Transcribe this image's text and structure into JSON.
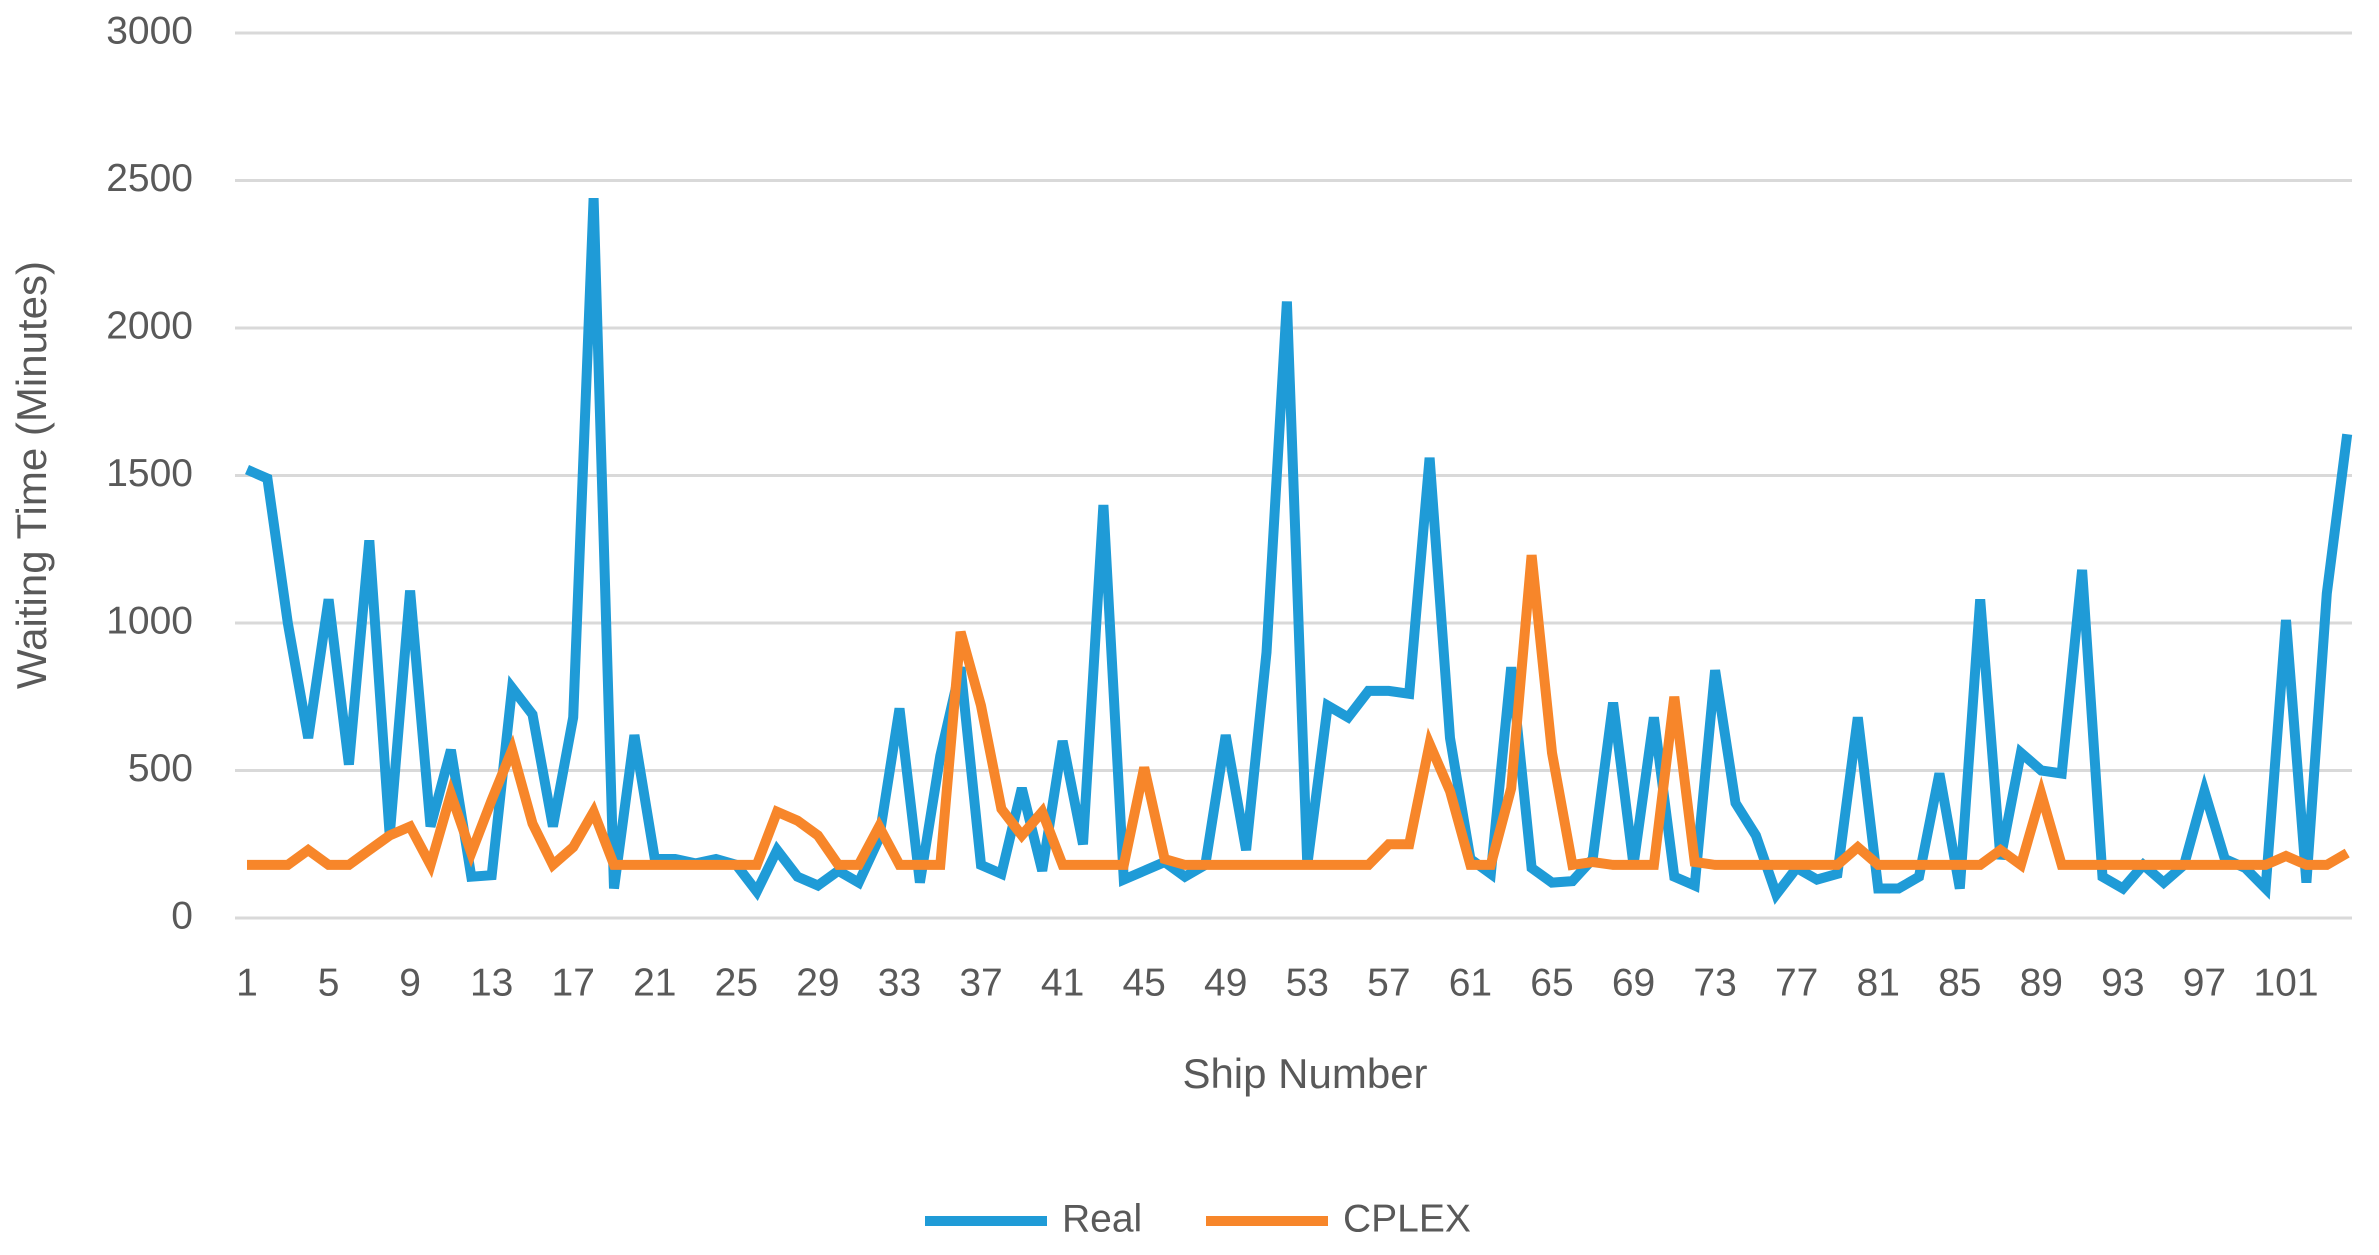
{
  "chart_data": {
    "type": "line",
    "x_label": "Ship Number",
    "y_label": "Waiting Time (Minutes)",
    "categories": [
      "1",
      null,
      null,
      null,
      "5",
      null,
      null,
      null,
      "9",
      null,
      null,
      null,
      "13",
      null,
      null,
      null,
      "17",
      null,
      null,
      null,
      "21",
      null,
      null,
      null,
      "25",
      null,
      null,
      null,
      "29",
      null,
      null,
      null,
      "33",
      null,
      null,
      null,
      "37",
      null,
      null,
      null,
      "41",
      null,
      null,
      null,
      "45",
      null,
      null,
      null,
      "49",
      null,
      null,
      null,
      "53",
      null,
      null,
      null,
      "57",
      null,
      null,
      null,
      "61",
      null,
      null,
      null,
      "65",
      null,
      null,
      null,
      "69",
      null,
      null,
      null,
      "73",
      null,
      null,
      null,
      "77",
      null,
      null,
      null,
      "81",
      null,
      null,
      null,
      "85",
      null,
      null,
      null,
      "89",
      null,
      null,
      null,
      "93",
      null,
      null,
      null,
      "97",
      null,
      null,
      null,
      "101",
      null,
      null,
      null
    ],
    "series": [
      {
        "name": "Real",
        "color": "#1f9bd7",
        "values": [
          1520,
          1490,
          1000,
          610,
          1080,
          520,
          1280,
          280,
          1110,
          310,
          570,
          140,
          145,
          780,
          690,
          310,
          680,
          2440,
          100,
          620,
          200,
          200,
          185,
          200,
          180,
          90,
          230,
          140,
          110,
          160,
          120,
          270,
          710,
          120,
          550,
          850,
          180,
          150,
          440,
          160,
          600,
          250,
          1400,
          130,
          160,
          190,
          140,
          180,
          620,
          230,
          900,
          2090,
          180,
          720,
          680,
          770,
          770,
          760,
          1560,
          610,
          200,
          150,
          850,
          170,
          120,
          125,
          200,
          730,
          180,
          680,
          140,
          110,
          840,
          390,
          280,
          80,
          170,
          130,
          150,
          680,
          100,
          100,
          140,
          490,
          100,
          1080,
          200,
          560,
          500,
          490,
          1180,
          140,
          100,
          180,
          120,
          180,
          430,
          200,
          170,
          100,
          1010,
          120,
          1100,
          1640
        ]
      },
      {
        "name": "CPLEX",
        "color": "#f7862a",
        "values": [
          180,
          180,
          180,
          230,
          180,
          180,
          230,
          280,
          310,
          180,
          420,
          220,
          400,
          570,
          320,
          180,
          240,
          360,
          180,
          180,
          180,
          180,
          180,
          180,
          180,
          180,
          360,
          330,
          280,
          180,
          180,
          310,
          180,
          180,
          180,
          970,
          720,
          370,
          280,
          360,
          180,
          180,
          180,
          180,
          510,
          200,
          180,
          180,
          180,
          180,
          180,
          180,
          180,
          180,
          180,
          180,
          250,
          250,
          590,
          430,
          180,
          180,
          440,
          1230,
          560,
          180,
          190,
          180,
          180,
          180,
          750,
          190,
          180,
          180,
          180,
          180,
          180,
          180,
          180,
          240,
          180,
          180,
          180,
          180,
          180,
          180,
          230,
          180,
          420,
          180,
          180,
          180,
          180,
          180,
          180,
          180,
          180,
          180,
          180,
          180,
          210,
          180,
          180,
          220
        ]
      }
    ],
    "ylim": [
      0,
      3000
    ],
    "yticks": [
      0,
      500,
      1000,
      1500,
      2000,
      2500,
      3000
    ],
    "grid": true
  }
}
